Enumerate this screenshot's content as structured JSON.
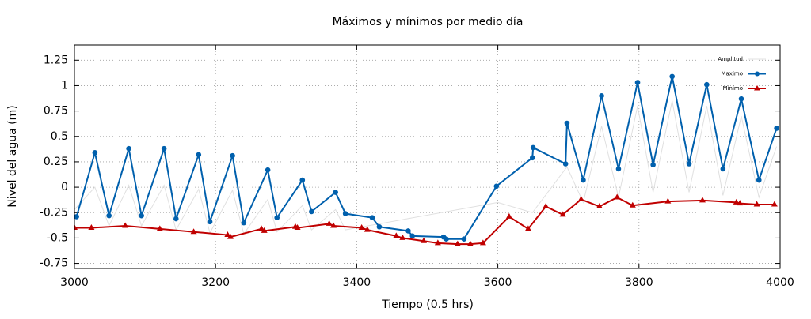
{
  "chart_data": {
    "type": "line",
    "title": "Máximos y mínimos por medio día",
    "x_label": "Tiempo (0.5 hrs)",
    "y_label": "Nivel del agua (m)",
    "xlim": [
      3000,
      4000
    ],
    "ylim": [
      -0.8,
      1.4
    ],
    "xticks": [
      3000,
      3200,
      3400,
      3600,
      3800,
      4000
    ],
    "yticks": [
      -0.75,
      -0.5,
      -0.25,
      0,
      0.25,
      0.5,
      0.75,
      1,
      1.25
    ],
    "grid": true,
    "legend": "upper right",
    "series": [
      {
        "name": "Amplitud",
        "color": "#e0e0e0",
        "marker": "none",
        "x": [
          3000,
          3029,
          3049,
          3077,
          3095,
          3127,
          3144,
          3176,
          3192,
          3224,
          3240,
          3274,
          3287,
          3323,
          3336,
          3370,
          3384,
          3600,
          3649,
          3698,
          3721,
          3747,
          3771,
          3798,
          3820,
          3847,
          3871,
          3896,
          3919,
          3945,
          3970,
          3995
        ],
        "values": [
          -0.22,
          0.0,
          -0.38,
          0.02,
          -0.38,
          0.02,
          -0.42,
          -0.02,
          -0.45,
          -0.03,
          -0.46,
          -0.12,
          -0.44,
          -0.18,
          -0.42,
          -0.22,
          -0.42,
          -0.15,
          -0.25,
          0.2,
          -0.15,
          0.6,
          -0.1,
          0.8,
          -0.05,
          0.85,
          -0.05,
          0.8,
          -0.08,
          0.7,
          -0.1,
          0.4
        ]
      },
      {
        "name": "Maximo",
        "color": "#0060ad",
        "marker": "circle",
        "x": [
          3003,
          3029,
          3049,
          3077,
          3095,
          3127,
          3144,
          3176,
          3192,
          3224,
          3240,
          3274,
          3287,
          3323,
          3336,
          3370,
          3384,
          3422,
          3432,
          3473,
          3479,
          3523,
          3527,
          3552,
          3598,
          3649,
          3650,
          3696,
          3698,
          3721,
          3747,
          3771,
          3798,
          3820,
          3847,
          3871,
          3896,
          3919,
          3945,
          3970,
          3995
        ],
        "values": [
          -0.29,
          0.34,
          -0.28,
          0.38,
          -0.28,
          0.38,
          -0.31,
          0.32,
          -0.34,
          0.31,
          -0.35,
          0.17,
          -0.3,
          0.07,
          -0.24,
          -0.05,
          -0.26,
          -0.3,
          -0.39,
          -0.43,
          -0.48,
          -0.49,
          -0.51,
          -0.51,
          0.01,
          0.29,
          0.39,
          0.23,
          0.63,
          0.07,
          0.9,
          0.18,
          1.03,
          0.22,
          1.09,
          0.23,
          1.01,
          0.18,
          0.87,
          0.07,
          0.58
        ]
      },
      {
        "name": "Minimo",
        "color": "#c00000",
        "marker": "triangle",
        "x": [
          3000,
          3024,
          3072,
          3121,
          3169,
          3217,
          3221,
          3265,
          3269,
          3313,
          3316,
          3361,
          3367,
          3407,
          3415,
          3456,
          3465,
          3495,
          3515,
          3543,
          3561,
          3579,
          3616,
          3643,
          3668,
          3692,
          3718,
          3744,
          3769,
          3791,
          3841,
          3890,
          3938,
          3943,
          3967,
          3992
        ],
        "values": [
          -0.4,
          -0.4,
          -0.38,
          -0.41,
          -0.44,
          -0.47,
          -0.49,
          -0.41,
          -0.43,
          -0.39,
          -0.4,
          -0.36,
          -0.38,
          -0.4,
          -0.42,
          -0.48,
          -0.5,
          -0.53,
          -0.55,
          -0.56,
          -0.56,
          -0.55,
          -0.29,
          -0.41,
          -0.19,
          -0.27,
          -0.12,
          -0.19,
          -0.1,
          -0.18,
          -0.14,
          -0.13,
          -0.15,
          -0.16,
          -0.17,
          -0.17
        ]
      }
    ]
  }
}
